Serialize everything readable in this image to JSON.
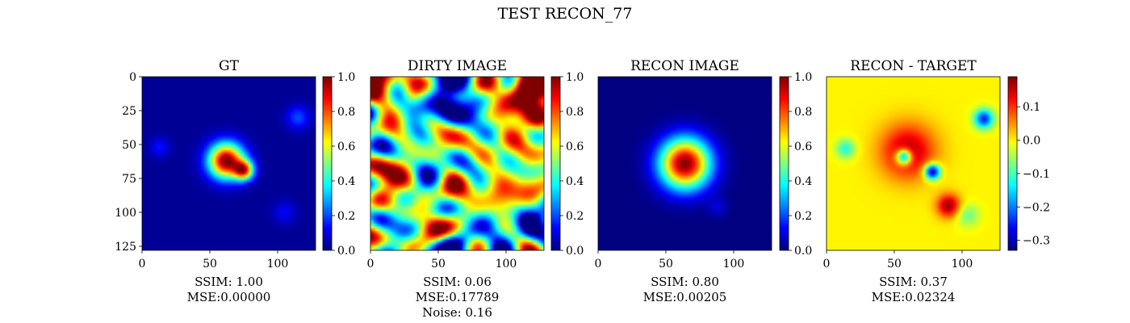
{
  "figure_title": "TEST RECON_77",
  "colormap": "jet",
  "chart_data": [
    {
      "type": "heatmap",
      "title": "GT",
      "x_ticks": [
        "0",
        "50",
        "100"
      ],
      "y_ticks": [
        "0",
        "25",
        "50",
        "75",
        "100",
        "125"
      ],
      "xlim": [
        0,
        128
      ],
      "ylim": [
        128,
        0
      ],
      "colorbar": {
        "range": [
          0,
          1
        ],
        "ticks": [
          "0.0",
          "0.2",
          "0.4",
          "0.6",
          "0.8",
          "1.0"
        ]
      },
      "blobs": [
        {
          "x": 62,
          "y": 62,
          "amp": 1.0,
          "sigma": 9
        },
        {
          "x": 75,
          "y": 69,
          "amp": 0.75,
          "sigma": 5
        },
        {
          "x": 115,
          "y": 30,
          "amp": 0.18,
          "sigma": 6
        },
        {
          "x": 13,
          "y": 52,
          "amp": 0.12,
          "sigma": 5
        },
        {
          "x": 105,
          "y": 100,
          "amp": 0.1,
          "sigma": 6
        }
      ],
      "background": 0.02,
      "caption": [
        "SSIM: 1.00",
        "MSE:0.00000"
      ]
    },
    {
      "type": "heatmap",
      "title": "DIRTY IMAGE",
      "x_ticks": [
        "0",
        "50",
        "100"
      ],
      "xlim": [
        0,
        128
      ],
      "ylim": [
        128,
        0
      ],
      "colorbar": {
        "range": [
          0,
          1
        ],
        "ticks": [
          "0.0",
          "0.2",
          "0.4",
          "0.6",
          "0.8",
          "1.0"
        ]
      },
      "background": 0.45,
      "texture": "noise",
      "blobs": [
        {
          "x": 55,
          "y": 55,
          "amp": 0.35,
          "sigma": 14
        },
        {
          "x": 85,
          "y": 95,
          "amp": 0.3,
          "sigma": 10
        },
        {
          "x": 30,
          "y": 15,
          "amp": 0.3,
          "sigma": 6
        },
        {
          "x": 112,
          "y": 8,
          "amp": 0.35,
          "sigma": 8
        }
      ],
      "caption": [
        "SSIM: 0.06",
        "MSE:0.17789",
        "Noise: 0.16"
      ]
    },
    {
      "type": "heatmap",
      "title": "RECON IMAGE",
      "x_ticks": [
        "0",
        "50",
        "100"
      ],
      "xlim": [
        0,
        128
      ],
      "ylim": [
        128,
        0
      ],
      "colorbar": {
        "range": [
          0,
          1
        ],
        "ticks": [
          "0.0",
          "0.2",
          "0.4",
          "0.6",
          "0.8",
          "1.0"
        ]
      },
      "background": 0.0,
      "blobs": [
        {
          "x": 64,
          "y": 64,
          "amp": 1.0,
          "sigma": 13
        },
        {
          "x": 88,
          "y": 96,
          "amp": 0.08,
          "sigma": 5
        }
      ],
      "caption": [
        "SSIM: 0.80",
        "MSE:0.00205"
      ]
    },
    {
      "type": "heatmap",
      "title": "RECON - TARGET",
      "x_ticks": [
        "0",
        "50",
        "100"
      ],
      "xlim": [
        0,
        128
      ],
      "ylim": [
        128,
        0
      ],
      "colorbar": {
        "range": [
          -0.33,
          0.19
        ],
        "ticks": [
          "0.1",
          "0.0",
          "−0.1",
          "−0.2",
          "−0.3"
        ],
        "tick_values": [
          0.1,
          0.0,
          -0.1,
          -0.2,
          -0.3
        ]
      },
      "background": 0.0,
      "blobs": [
        {
          "x": 60,
          "y": 55,
          "amp": 0.17,
          "sigma": 14
        },
        {
          "x": 90,
          "y": 95,
          "amp": 0.18,
          "sigma": 6
        },
        {
          "x": 57,
          "y": 59,
          "amp": -0.3,
          "sigma": 4
        },
        {
          "x": 78,
          "y": 70,
          "amp": -0.33,
          "sigma": 4
        },
        {
          "x": 116,
          "y": 31,
          "amp": -0.25,
          "sigma": 5
        },
        {
          "x": 14,
          "y": 53,
          "amp": -0.12,
          "sigma": 5
        },
        {
          "x": 104,
          "y": 102,
          "amp": -0.08,
          "sigma": 6
        }
      ],
      "caption": [
        "SSIM: 0.37",
        "MSE:0.02324"
      ]
    }
  ]
}
